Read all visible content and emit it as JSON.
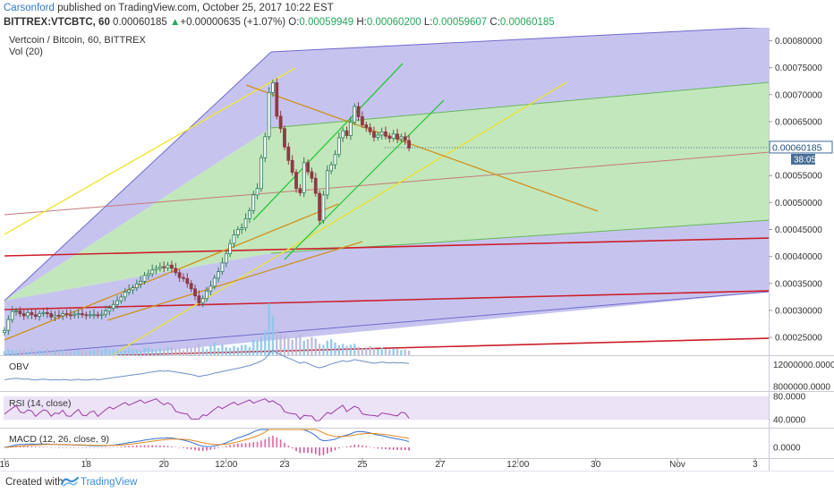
{
  "header": {
    "author": "Carsonford",
    "published": "published on TradingView.com, October 25, 2017 10:22 EST",
    "symbol": "BITTREX:VTCBTC, 60",
    "last": "0.00060185",
    "change": "+0.00000635 (+1.07%)",
    "o_label": "O:",
    "o": "0.00059949",
    "h_label": "H:",
    "h": "0.00060200",
    "l_label": "L:",
    "l": "0.00059607",
    "c_label": "C:",
    "c": "0.00060185"
  },
  "chart_data": {
    "type": "candlestick",
    "title": "Vertcoin / Bitcoin, 60, BITTREX",
    "volume_label": "Vol (20)",
    "y_ticks": [
      "0.00080000",
      "0.00075000",
      "0.00070000",
      "0.00065000",
      "0.00055000",
      "0.00050000",
      "0.00045000",
      "0.00040000",
      "0.00035000",
      "0.00030000",
      "0.00025000"
    ],
    "y_tick_values": [
      0.0008,
      0.00075,
      0.0007,
      0.00065,
      0.00055,
      0.0005,
      0.00045,
      0.0004,
      0.00035,
      0.0003,
      0.00025
    ],
    "ylim": [
      0.000217,
      0.000824
    ],
    "price_label": "0.00060185",
    "price_value": 0.00060185,
    "countdown": "38:05",
    "x_ticks": [
      "16",
      "18",
      "20",
      "12:00",
      "23",
      "25",
      "27",
      "12:00",
      "30",
      "Nov",
      "3"
    ],
    "x_tick_index": [
      0,
      21,
      41,
      57,
      72,
      92,
      112,
      132,
      152,
      173,
      193
    ],
    "x_max_index": 196,
    "close": [
      0.000263,
      0.000283,
      0.000298,
      0.000299,
      0.000294,
      0.00029,
      0.000296,
      0.000292,
      0.000289,
      0.000294,
      0.000296,
      0.000294,
      0.000288,
      0.000291,
      0.00029,
      0.000294,
      0.000292,
      0.000291,
      0.000293,
      0.000294,
      0.000292,
      0.000291,
      0.000292,
      0.000292,
      0.000291,
      0.000293,
      0.000299,
      0.000304,
      0.000311,
      0.000318,
      0.000325,
      0.000334,
      0.000338,
      0.000342,
      0.000349,
      0.000354,
      0.000365,
      0.000368,
      0.000375,
      0.000378,
      0.000381,
      0.000379,
      0.000384,
      0.000378,
      0.00037,
      0.000361,
      0.000359,
      0.00035,
      0.00034,
      0.000327,
      0.000314,
      0.000322,
      0.000336,
      0.000345,
      0.00036,
      0.000372,
      0.000388,
      0.000405,
      0.000424,
      0.00044,
      0.00045,
      0.000453,
      0.00047,
      0.000485,
      0.000514,
      0.000526,
      0.000583,
      0.000622,
      0.000704,
      0.000722,
      0.00066,
      0.000637,
      0.000603,
      0.000578,
      0.000556,
      0.000526,
      0.000518,
      0.000574,
      0.000557,
      0.000545,
      0.000517,
      0.000467,
      0.000514,
      0.000559,
      0.00057,
      0.000589,
      0.00062,
      0.000633,
      0.000624,
      0.000649,
      0.000678,
      0.000659,
      0.000644,
      0.000639,
      0.000631,
      0.000621,
      0.000625,
      0.000631,
      0.000623,
      0.000619,
      0.000627,
      0.000618,
      0.000622,
      0.000615,
      0.000601
    ],
    "volume": [
      0.08,
      0.12,
      0.1,
      0.09,
      0.1,
      0.11,
      0.07,
      0.13,
      0.08,
      0.1,
      0.09,
      0.12,
      0.08,
      0.1,
      0.09,
      0.11,
      0.07,
      0.09,
      0.08,
      0.1,
      0.09,
      0.08,
      0.1,
      0.09,
      0.12,
      0.1,
      0.14,
      0.11,
      0.12,
      0.1,
      0.09,
      0.11,
      0.13,
      0.12,
      0.1,
      0.09,
      0.14,
      0.15,
      0.12,
      0.1,
      0.13,
      0.11,
      0.14,
      0.16,
      0.12,
      0.13,
      0.1,
      0.15,
      0.14,
      0.17,
      0.22,
      0.15,
      0.12,
      0.18,
      0.25,
      0.14,
      0.2,
      0.16,
      0.14,
      0.18,
      0.15,
      0.19,
      0.2,
      0.16,
      0.3,
      0.28,
      0.35,
      0.48,
      1.0,
      0.75,
      0.5,
      0.42,
      0.38,
      0.33,
      0.3,
      0.36,
      0.4,
      0.28,
      0.31,
      0.35,
      0.32,
      0.22,
      0.2,
      0.28,
      0.31,
      0.24,
      0.19,
      0.22,
      0.18,
      0.2,
      0.22,
      0.16,
      0.14,
      0.15,
      0.17,
      0.13,
      0.12,
      0.15,
      0.12,
      0.11,
      0.13,
      0.12,
      0.1,
      0.11,
      0.09
    ],
    "candle_colors": {
      "up": "#2e7d5b",
      "down": "#8e3a45"
    },
    "indicators": {
      "obv": {
        "label": "OBV",
        "ticks": [
          "12000000.0000",
          "8000000.0000"
        ],
        "tick_values": [
          12000000,
          8000000
        ],
        "ylim": [
          7300000,
          13400000
        ]
      },
      "rsi": {
        "label": "RSI (14, close)",
        "ticks": [
          "80.0000",
          "40.0000"
        ],
        "tick_values": [
          80,
          40
        ],
        "ylim": [
          28,
          86
        ]
      },
      "macd": {
        "label": "MACD (12, 26, close, 9)",
        "ticks": [
          "0.0000"
        ],
        "tick_values": [
          0
        ]
      }
    }
  },
  "footer": {
    "made_with": "Created with",
    "brand": "TradingView"
  },
  "colors": {
    "pitch_fan_purple": "#7f7ad0",
    "pitch_green": "#8fcf7a",
    "trend_red": "#d0202a",
    "trend_orange": "#d48a1a",
    "trend_yellow": "#f3e73a",
    "channel_green": "#27c93f"
  }
}
